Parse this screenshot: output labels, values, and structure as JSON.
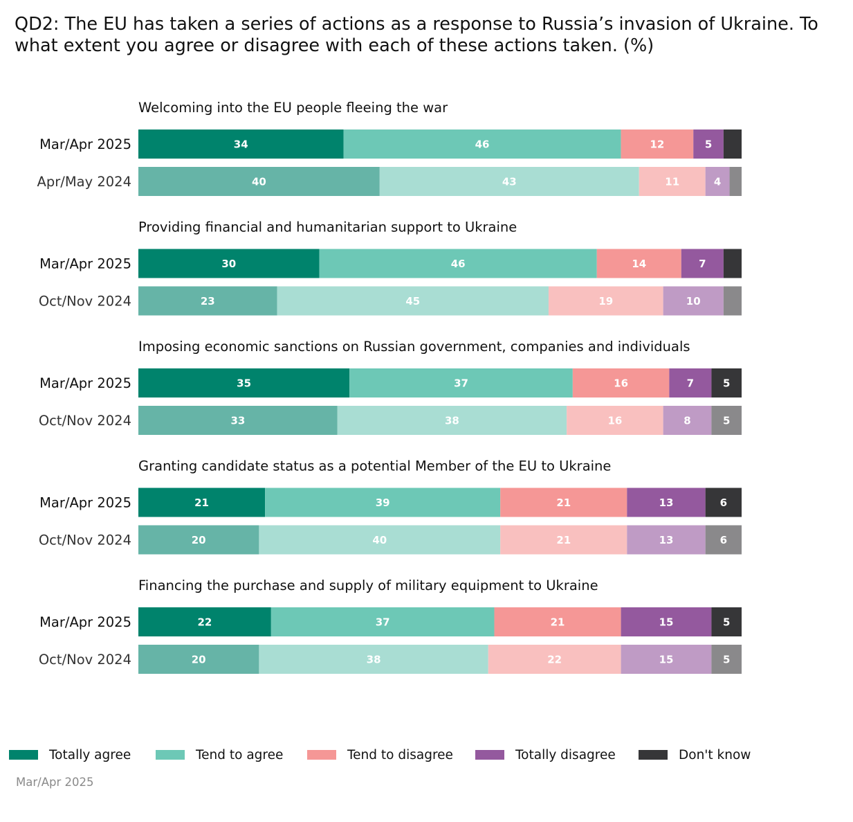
{
  "chart_data": {
    "type": "bar",
    "orientation": "horizontal",
    "stacked": true,
    "title": "QD2: The EU has taken a series of actions as a response to Russia’s invasion of Ukraine. To what extent you agree or disagree with each of these actions taken. (%)",
    "legend_position": "bottom",
    "series_names": [
      "Totally agree",
      "Tend to agree",
      "Tend to disagree",
      "Totally disagree",
      "Don't know"
    ],
    "colors_current": [
      "#00836c",
      "#6dc8b6",
      "#f59796",
      "#94599e",
      "#363638"
    ],
    "colors_previous": [
      "#66b4a7",
      "#a9ddd3",
      "#f9c0bf",
      "#bf9bc5",
      "#8a898b"
    ],
    "groups": [
      {
        "title": "Welcoming into the EU people fleeing the war",
        "rows": [
          {
            "label": "Mar/Apr 2025",
            "values": [
              34,
              46,
              12,
              5,
              3
            ],
            "labels": [
              "34",
              "46",
              "12",
              "5",
              ""
            ]
          },
          {
            "label": "Apr/May 2024",
            "values": [
              40,
              43,
              11,
              4,
              2
            ],
            "labels": [
              "40",
              "43",
              "11",
              "4",
              ""
            ]
          }
        ]
      },
      {
        "title": "Providing financial and humanitarian support to Ukraine",
        "rows": [
          {
            "label": "Mar/Apr 2025",
            "values": [
              30,
              46,
              14,
              7,
              3
            ],
            "labels": [
              "30",
              "46",
              "14",
              "7",
              ""
            ]
          },
          {
            "label": "Oct/Nov 2024",
            "values": [
              23,
              45,
              19,
              10,
              3
            ],
            "labels": [
              "23",
              "45",
              "19",
              "10",
              ""
            ]
          }
        ]
      },
      {
        "title": "Imposing economic sanctions on Russian government, companies and individuals",
        "rows": [
          {
            "label": "Mar/Apr 2025",
            "values": [
              35,
              37,
              16,
              7,
              5
            ],
            "labels": [
              "35",
              "37",
              "16",
              "7",
              "5"
            ]
          },
          {
            "label": "Oct/Nov 2024",
            "values": [
              33,
              38,
              16,
              8,
              5
            ],
            "labels": [
              "33",
              "38",
              "16",
              "8",
              "5"
            ]
          }
        ]
      },
      {
        "title": "Granting candidate status as a potential Member of the EU to Ukraine",
        "rows": [
          {
            "label": "Mar/Apr 2025",
            "values": [
              21,
              39,
              21,
              13,
              6
            ],
            "labels": [
              "21",
              "39",
              "21",
              "13",
              "6"
            ]
          },
          {
            "label": "Oct/Nov 2024",
            "values": [
              20,
              40,
              21,
              13,
              6
            ],
            "labels": [
              "20",
              "40",
              "21",
              "13",
              "6"
            ]
          }
        ]
      },
      {
        "title": "Financing the purchase and supply of military equipment to Ukraine",
        "rows": [
          {
            "label": "Mar/Apr 2025",
            "values": [
              22,
              37,
              21,
              15,
              5
            ],
            "labels": [
              "22",
              "37",
              "21",
              "15",
              "5"
            ]
          },
          {
            "label": "Oct/Nov 2024",
            "values": [
              20,
              38,
              22,
              15,
              5
            ],
            "labels": [
              "20",
              "38",
              "22",
              "15",
              "5"
            ]
          }
        ]
      }
    ],
    "source_note": "Mar/Apr 2025"
  }
}
